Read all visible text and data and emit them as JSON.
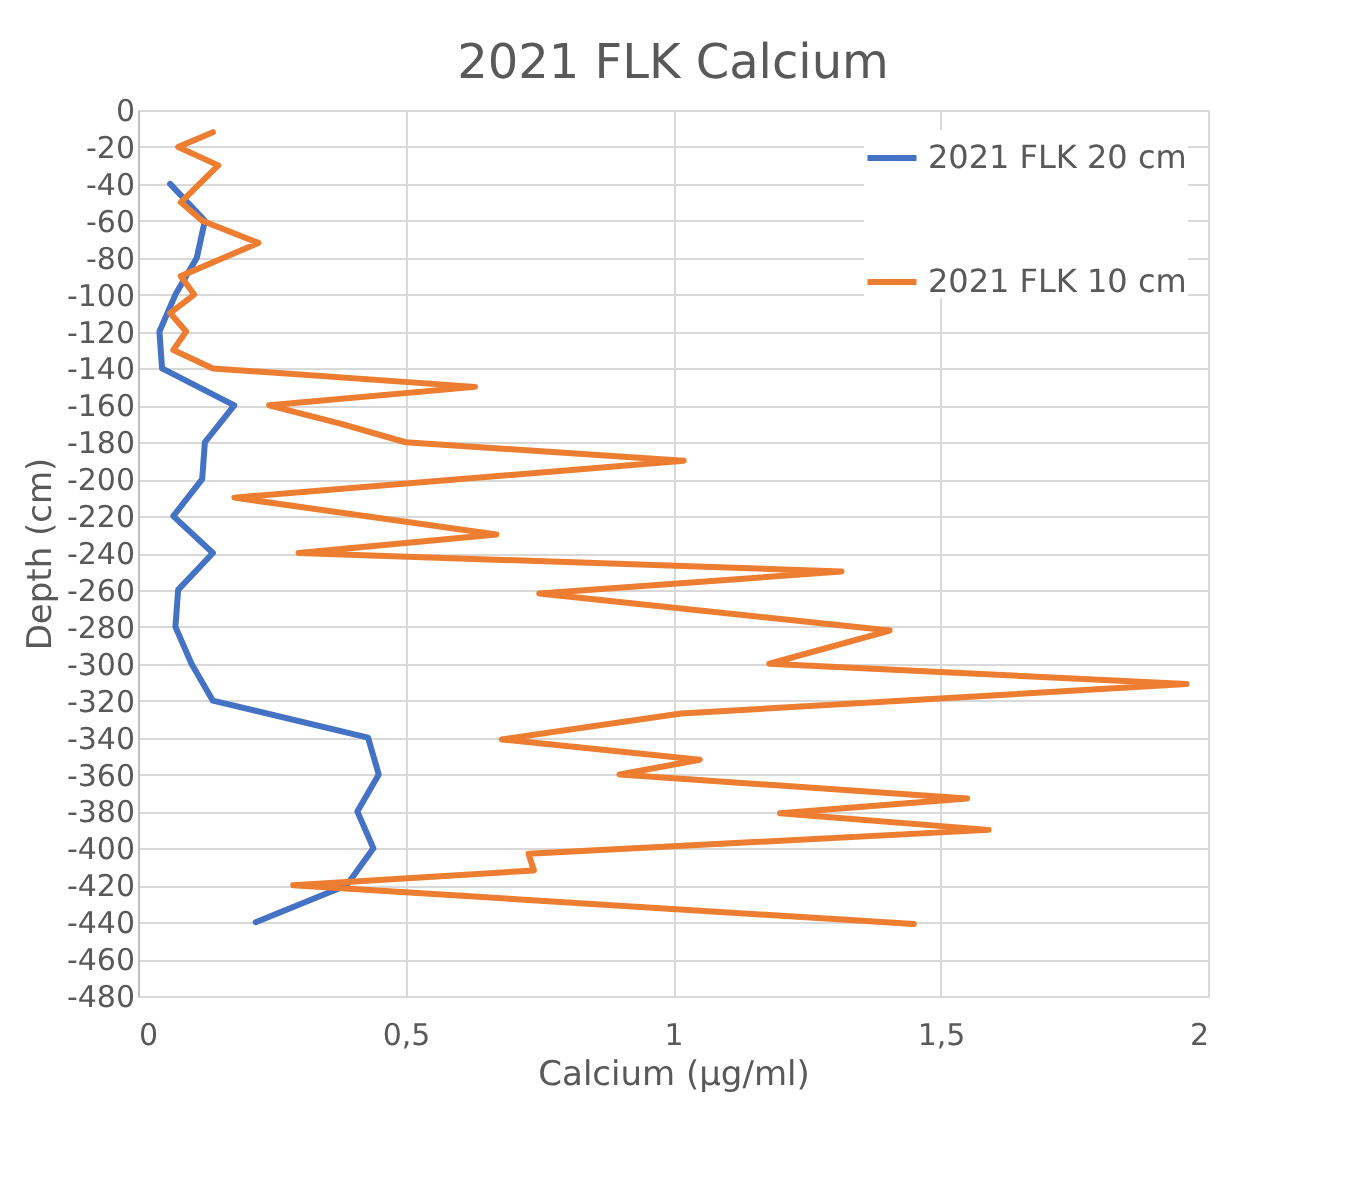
{
  "chart_data": {
    "type": "line",
    "title": "2021 FLK Calcium",
    "xlabel": "Calcium (µg/ml)",
    "ylabel": "Depth (cm)",
    "xlim": [
      0,
      2
    ],
    "xticks": [
      0,
      {
        "value": 0.5,
        "label": "0,5"
      },
      1,
      {
        "value": 1.5,
        "label": "1,5"
      },
      2
    ],
    "ylim": [
      -480,
      0
    ],
    "yticks": [
      0,
      -20,
      -40,
      -60,
      -80,
      -100,
      -120,
      -140,
      -160,
      -180,
      -200,
      -220,
      -240,
      -260,
      -280,
      -300,
      -320,
      -340,
      -360,
      -380,
      -400,
      -420,
      -440,
      -460,
      -480
    ],
    "grid": true,
    "legend": "top right",
    "series": [
      {
        "name": "2021 FLK 20 cm",
        "color": "#4472c4",
        "x": [
          0.06,
          0.125,
          0.11,
          0.07,
          0.04,
          0.045,
          0.18,
          0.125,
          0.12,
          0.066,
          0.14,
          0.075,
          0.07,
          0.1,
          0.14,
          0.43,
          0.45,
          0.41,
          0.44,
          0.39,
          0.22
        ],
        "values": [
          -40,
          -60,
          -80,
          -100,
          -120,
          -140,
          -160,
          -180,
          -200,
          -220,
          -240,
          -260,
          -280,
          -300,
          -320,
          -340,
          -360,
          -380,
          -400,
          -420,
          -440
        ]
      },
      {
        "name": "2021 FLK 10 cm",
        "color": "#ed7d31",
        "x": [
          0.14,
          0.075,
          0.15,
          0.08,
          0.12,
          0.225,
          0.08,
          0.105,
          0.06,
          0.09,
          0.066,
          0.14,
          0.63,
          0.245,
          0.38,
          0.5,
          1.02,
          0.18,
          0.67,
          0.3,
          1.315,
          0.75,
          1.405,
          1.18,
          1.96,
          1.015,
          0.68,
          1.05,
          0.9,
          1.55,
          1.2,
          1.59,
          0.73,
          0.74,
          0.29,
          1.45
        ],
        "values": [
          -12,
          -20,
          -30,
          -50,
          -60,
          -72,
          -90,
          -100,
          -110,
          -120,
          -130,
          -140,
          -150,
          -160,
          -170,
          -180,
          -190,
          -210,
          -230,
          -240,
          -250,
          -262,
          -282,
          -300,
          -311,
          -327,
          -341,
          -352,
          -360,
          -373,
          -381,
          -390,
          -403,
          -412,
          -420,
          -441
        ]
      }
    ]
  }
}
